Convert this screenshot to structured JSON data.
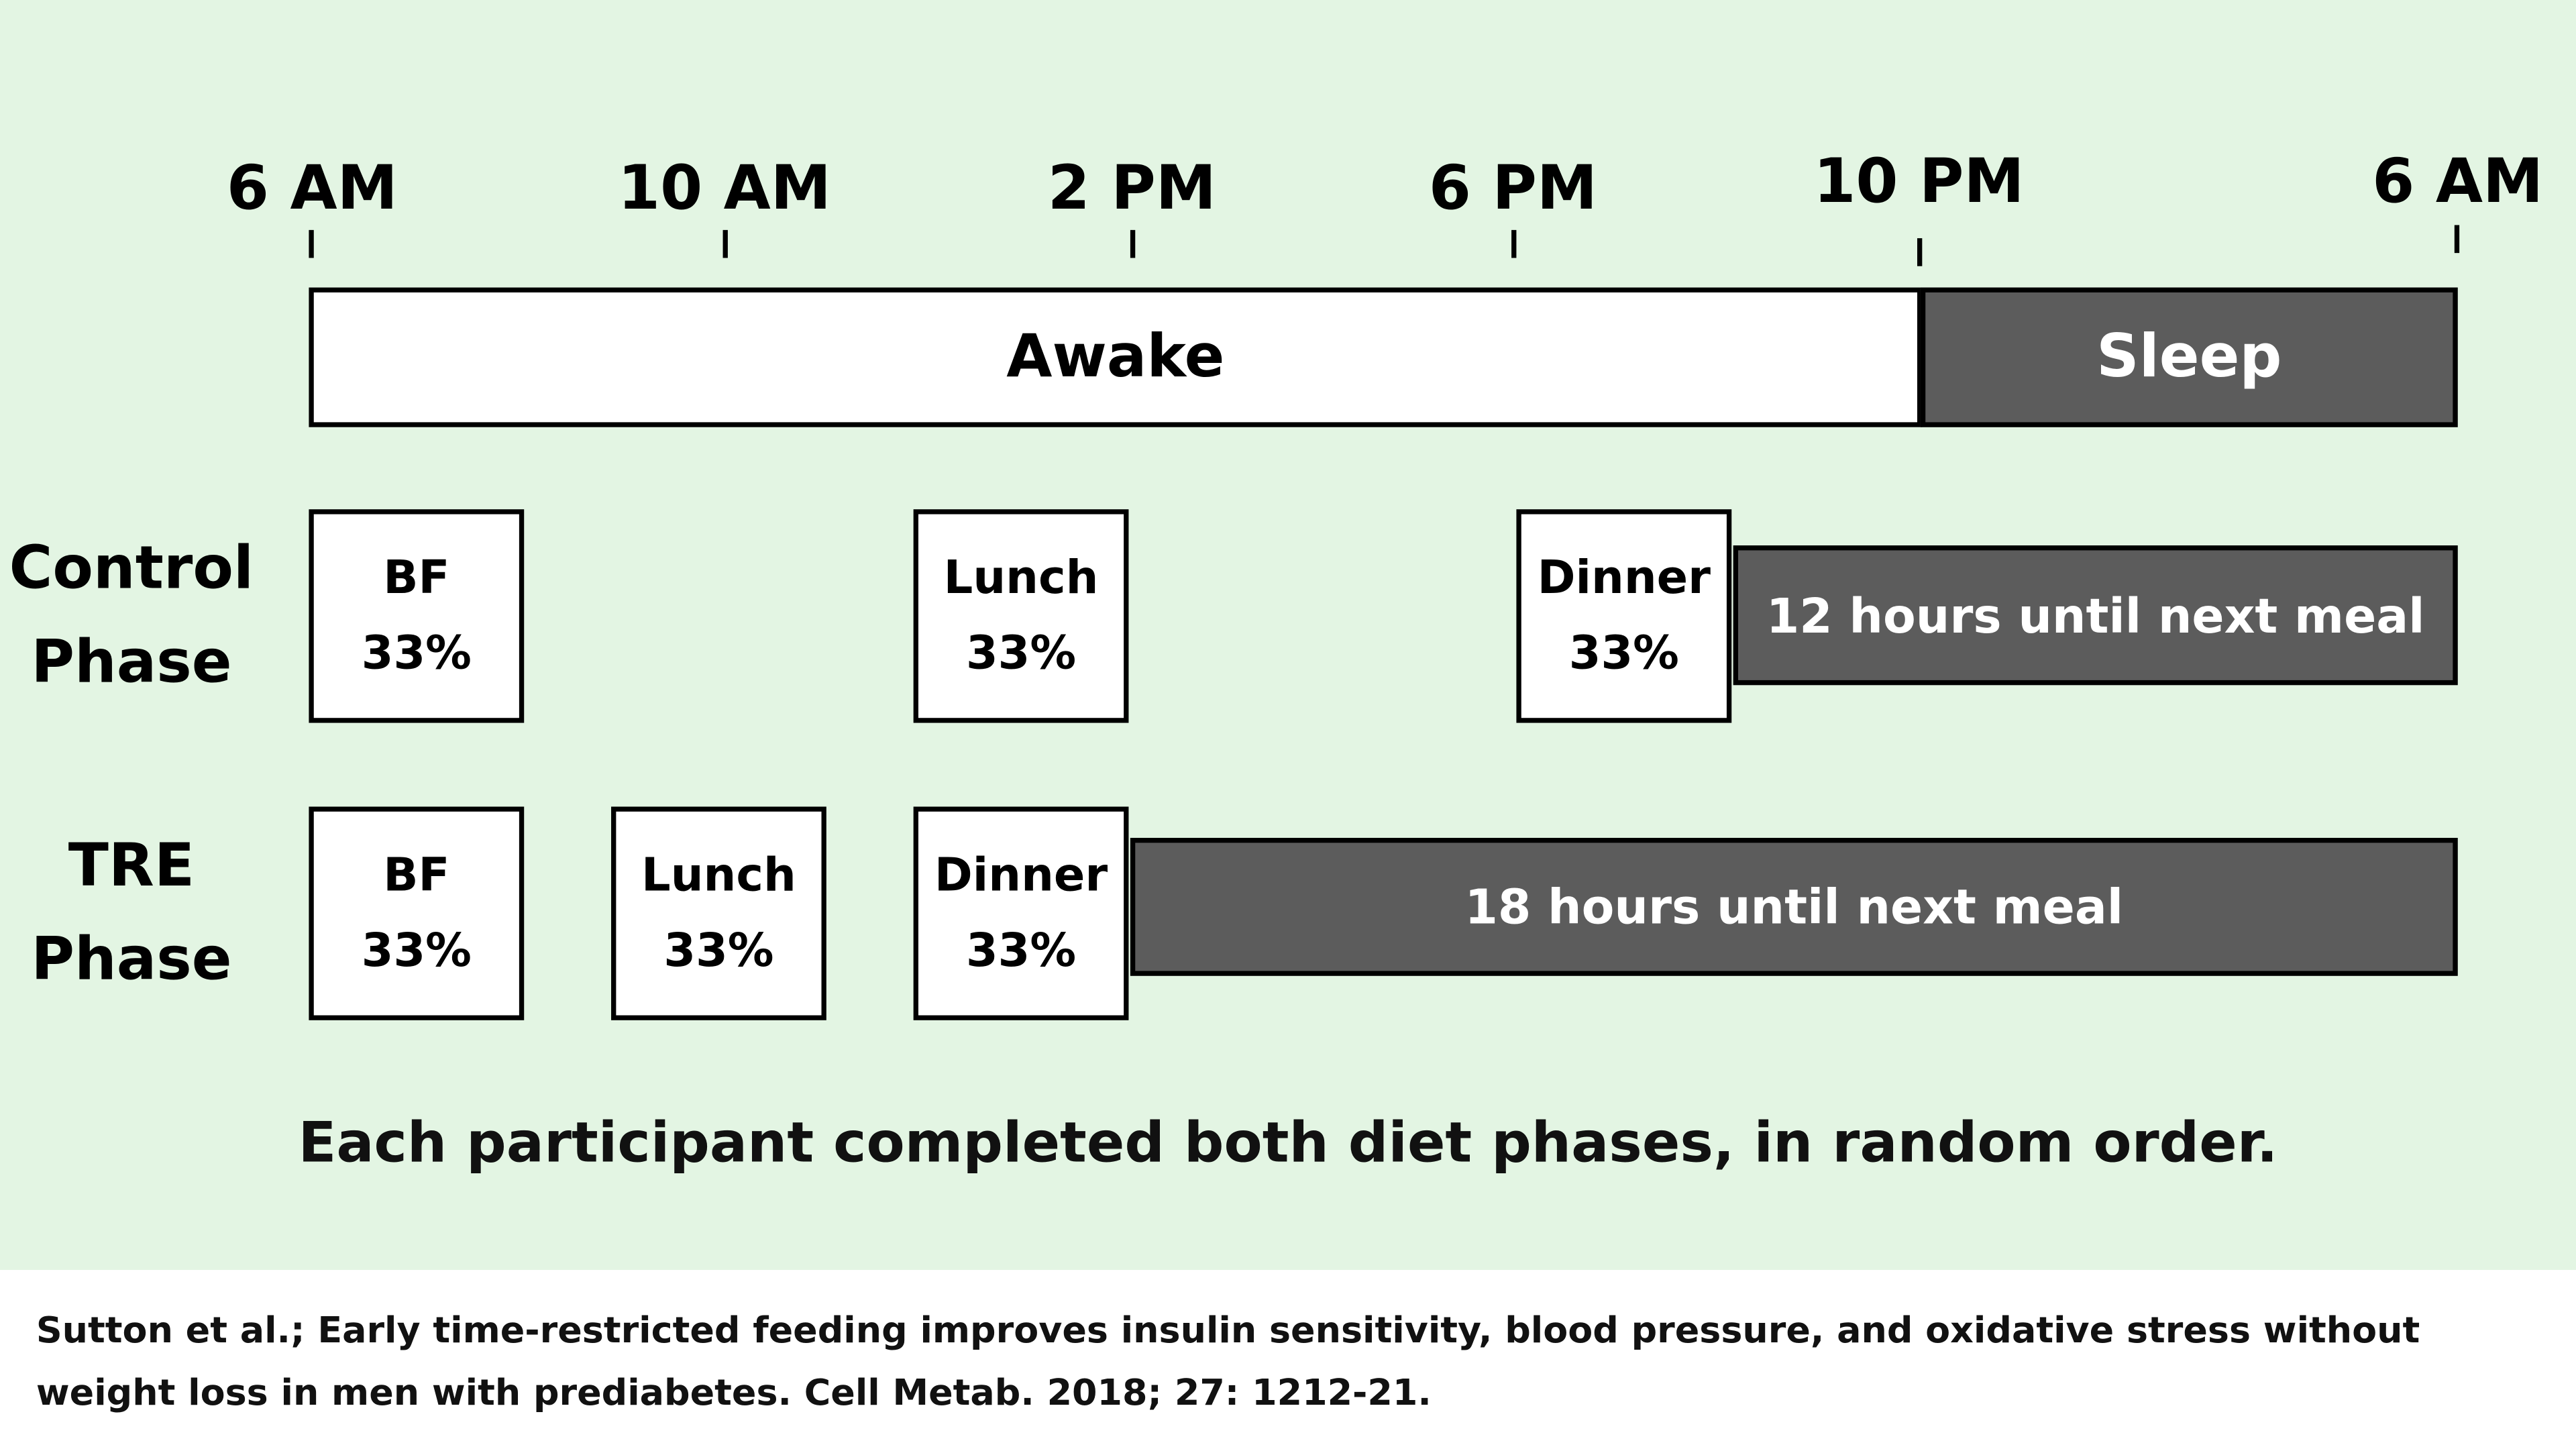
{
  "timeline": {
    "ticks": [
      "6 AM",
      "10 AM",
      "2 PM",
      "6 PM",
      "10 PM",
      "6 AM"
    ],
    "awake_label": "Awake",
    "sleep_label": "Sleep"
  },
  "control": {
    "label_line1": "Control",
    "label_line2": "Phase",
    "meals": [
      {
        "name": "BF",
        "pct": "33%"
      },
      {
        "name": "Lunch",
        "pct": "33%"
      },
      {
        "name": "Dinner",
        "pct": "33%"
      }
    ],
    "fast_label": "12 hours until next meal"
  },
  "tre": {
    "label_line1": "TRE",
    "label_line2": "Phase",
    "meals": [
      {
        "name": "BF",
        "pct": "33%"
      },
      {
        "name": "Lunch",
        "pct": "33%"
      },
      {
        "name": "Dinner",
        "pct": "33%"
      }
    ],
    "fast_label": "18 hours until next meal"
  },
  "caption": "Each participant completed both diet phases, in random order.",
  "citation": "Sutton et al.; Early time-restricted feeding improves insulin sensitivity, blood pressure, and oxidative stress without weight loss in men with prediabetes. Cell Metab. 2018; 27: 1212-21.",
  "colors": {
    "background": "#e3f5e3",
    "dark_bar": "#5c5c5c",
    "box": "#ffffff"
  }
}
